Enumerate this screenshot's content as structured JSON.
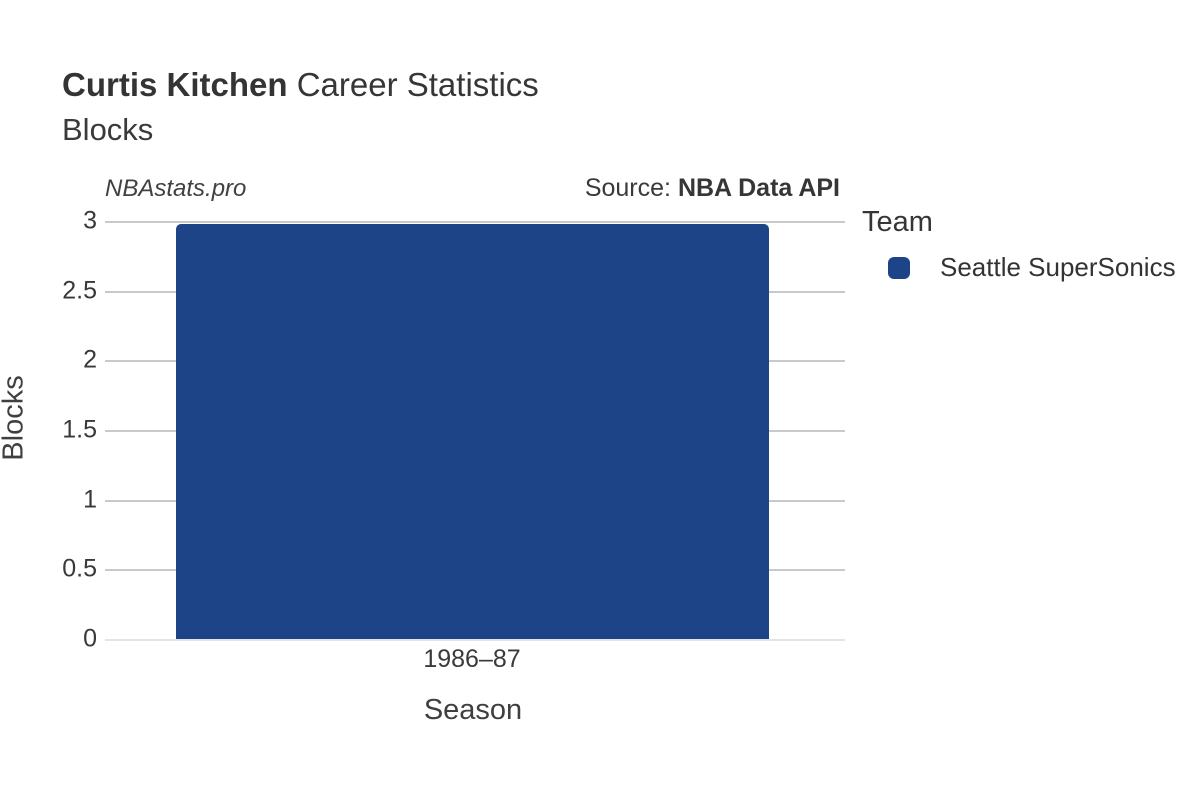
{
  "header": {
    "title_bold": "Curtis Kitchen",
    "title_rest": " Career Statistics",
    "subtitle": "Blocks"
  },
  "watermark": {
    "text": "NBAstats.pro"
  },
  "source": {
    "prefix": "Source: ",
    "name": "NBA Data API"
  },
  "legend": {
    "title": "Team",
    "items": [
      {
        "label": "Seattle SuperSonics",
        "color": "#1d4487"
      }
    ]
  },
  "chart_data": {
    "type": "bar",
    "title": "Curtis Kitchen Career Statistics — Blocks",
    "categories": [
      "1986–87"
    ],
    "series": [
      {
        "name": "Seattle SuperSonics",
        "values": [
          3
        ],
        "color": "#1d4487"
      }
    ],
    "xlabel": "Season",
    "ylabel": "Blocks",
    "ylim": [
      0,
      3
    ],
    "yticks": [
      0,
      0.5,
      1,
      1.5,
      2,
      2.5,
      3
    ],
    "grid": true,
    "legend_position": "right"
  },
  "colors": {
    "bar": "#1d4487",
    "gridline": "#c9c9c9",
    "baseline": "#e4e4e4",
    "text_dark": "#363636"
  }
}
